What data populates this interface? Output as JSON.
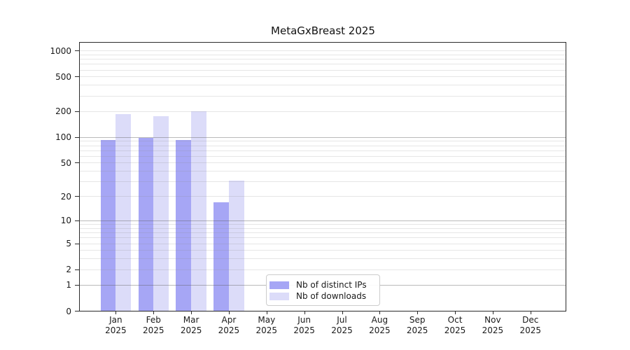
{
  "chart_data": {
    "type": "bar",
    "title": "MetaGxBreast 2025",
    "xlabel": "",
    "ylabel": "",
    "yscale": "log1p",
    "ylim": [
      0,
      1266
    ],
    "yticks": [
      0,
      1,
      2,
      5,
      10,
      20,
      50,
      100,
      200,
      500,
      1000
    ],
    "major_gridline_values": [
      1,
      10,
      100
    ],
    "minor_gridline_values": [
      2,
      3,
      4,
      5,
      6,
      7,
      8,
      9,
      20,
      30,
      40,
      50,
      60,
      70,
      80,
      90,
      200,
      300,
      400,
      500,
      600,
      700,
      800,
      900,
      1000
    ],
    "categories": [
      "Jan 2025",
      "Feb 2025",
      "Mar 2025",
      "Apr 2025",
      "May 2025",
      "Jun 2025",
      "Jul 2025",
      "Aug 2025",
      "Sep 2025",
      "Oct 2025",
      "Nov 2025",
      "Dec 2025"
    ],
    "series": [
      {
        "name": "Nb of distinct IPs",
        "color": "#a6a6f5",
        "values": [
          93,
          98,
          93,
          17,
          0,
          0,
          0,
          0,
          0,
          0,
          0,
          0
        ]
      },
      {
        "name": "Nb of downloads",
        "color": "#dcdcf9",
        "values": [
          185,
          177,
          200,
          31,
          0,
          0,
          0,
          0,
          0,
          0,
          0,
          0
        ]
      }
    ],
    "legend": {
      "position": "lower center"
    },
    "grid": "on"
  }
}
